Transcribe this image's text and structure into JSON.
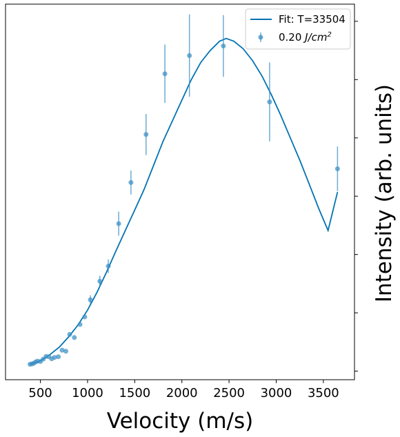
{
  "chart_data": {
    "type": "scatter",
    "title": "",
    "xlabel": "Velocity (m/s)",
    "ylabel": "Intensity (arb. units)",
    "xlim": [
      130,
      3830
    ],
    "ylim": [
      -0.025,
      1.07
    ],
    "x_ticks": [
      500,
      1000,
      1500,
      2000,
      2500,
      3000,
      3500
    ],
    "x_tick_labels": [
      "500",
      "1000",
      "1500",
      "2000",
      "2500",
      "3000",
      "3500"
    ],
    "y_tick_values": [
      0.0,
      0.17,
      0.34,
      0.51,
      0.68,
      0.85,
      1.02
    ],
    "y_tick_labels_shown": false,
    "grid": false,
    "legend_position": "top-right",
    "colors": {
      "fit": "#0072b2",
      "points": "#3b8fc4"
    },
    "series": [
      {
        "name": "Fit: T=33504",
        "kind": "line",
        "x": [
          390,
          450,
          500,
          600,
          700,
          800,
          900,
          1000,
          1100,
          1200,
          1300,
          1400,
          1500,
          1600,
          1700,
          1800,
          1900,
          2000,
          2100,
          2200,
          2300,
          2400,
          2470,
          2550,
          2650,
          2750,
          2850,
          2950,
          3050,
          3150,
          3250,
          3350,
          3450,
          3550,
          3650
        ],
        "y": [
          0.02,
          0.025,
          0.03,
          0.048,
          0.07,
          0.1,
          0.135,
          0.178,
          0.23,
          0.288,
          0.35,
          0.41,
          0.47,
          0.53,
          0.6,
          0.67,
          0.73,
          0.79,
          0.85,
          0.9,
          0.935,
          0.962,
          0.97,
          0.962,
          0.94,
          0.905,
          0.86,
          0.805,
          0.745,
          0.68,
          0.615,
          0.545,
          0.475,
          0.41,
          0.522
        ]
      },
      {
        "name": "0.20 J/cm²",
        "kind": "errorbar",
        "x": [
          390,
          410,
          430,
          450,
          470,
          500,
          530,
          560,
          590,
          620,
          650,
          690,
          730,
          770,
          810,
          860,
          920,
          970,
          1030,
          1130,
          1220,
          1330,
          1460,
          1620,
          1820,
          2080,
          2440,
          2930,
          3650
        ],
        "y": [
          0.02,
          0.021,
          0.023,
          0.027,
          0.029,
          0.028,
          0.035,
          0.043,
          0.042,
          0.036,
          0.04,
          0.042,
          0.061,
          0.058,
          0.107,
          0.098,
          0.136,
          0.158,
          0.208,
          0.262,
          0.306,
          0.43,
          0.55,
          0.69,
          0.867,
          0.92,
          0.948,
          0.785,
          0.59
        ],
        "yerr": [
          0,
          0,
          0,
          0,
          0,
          0,
          0,
          0,
          0,
          0,
          0,
          0,
          0,
          0,
          0,
          0,
          0,
          0,
          0.013,
          0.016,
          0.02,
          0.035,
          0.035,
          0.06,
          0.085,
          0.12,
          0.09,
          0.115,
          0.065
        ]
      }
    ]
  },
  "legend": {
    "fit_label": "Fit: T=33504",
    "points_label_prefix": "0.20 ",
    "points_label_unit": "J/cm",
    "points_label_sup": "2"
  }
}
